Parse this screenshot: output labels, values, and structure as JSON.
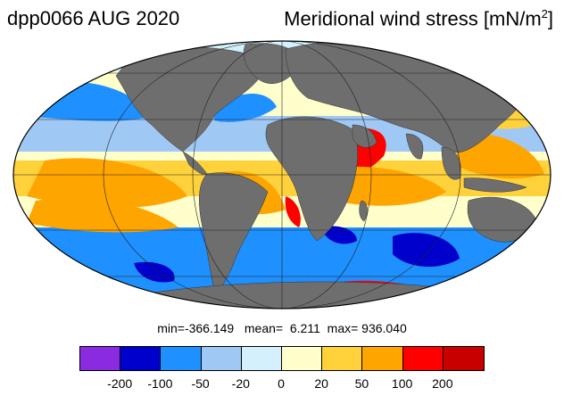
{
  "title_left": "dpp0066 AUG 2020",
  "title_right": {
    "text": "Meridional wind stress [mN/m",
    "superscript": "2",
    "suffix": "]"
  },
  "stats": {
    "min_label": "min=",
    "min": "-366.149",
    "mean_label": "mean=",
    "mean": "6.211",
    "max_label": "max=",
    "max": "936.040"
  },
  "colorbar": {
    "colors": [
      "#8a2be2",
      "#0000cd",
      "#1e90ff",
      "#a0c8f5",
      "#d4f0fc",
      "#ffffcc",
      "#ffd23c",
      "#ffa500",
      "#ff0000",
      "#c80000"
    ],
    "tick_labels": [
      "-200",
      "-100",
      "-50",
      "-20",
      "0",
      "20",
      "50",
      "100",
      "200"
    ]
  },
  "map": {
    "projection": "mollweide",
    "land_color": "#6e6e6e",
    "grid": true
  }
}
